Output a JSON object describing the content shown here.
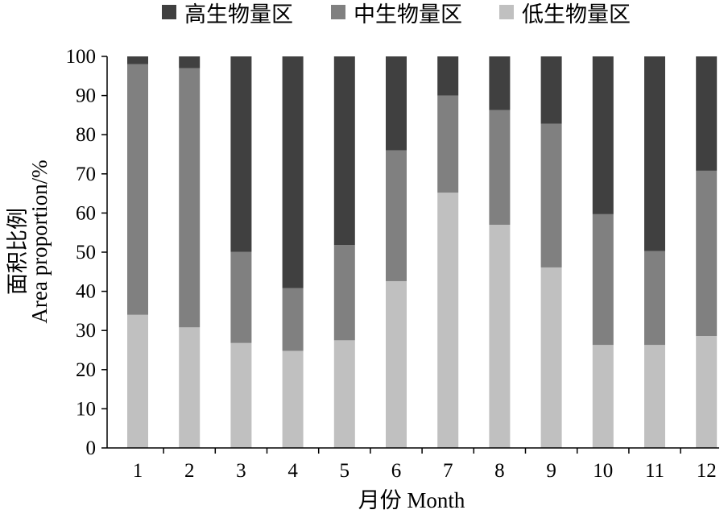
{
  "chart_data": {
    "type": "bar",
    "stacked": true,
    "categories": [
      "1",
      "2",
      "3",
      "4",
      "5",
      "6",
      "7",
      "8",
      "9",
      "10",
      "11",
      "12"
    ],
    "series": [
      {
        "name": "低生物量区",
        "color": "#c0c0c0",
        "values": [
          34,
          30.8,
          26.8,
          24.8,
          27.5,
          42.6,
          65.2,
          57,
          46.1,
          26.3,
          26.3,
          28.6
        ]
      },
      {
        "name": "中生物量区",
        "color": "#808080",
        "values": [
          64,
          66.2,
          23.3,
          16,
          24.3,
          33.4,
          24.8,
          29.3,
          36.7,
          33.4,
          24,
          42.2
        ]
      },
      {
        "name": "高生物量区",
        "color": "#404040",
        "values": [
          2,
          3,
          49.9,
          59.2,
          48.2,
          24,
          10,
          13.7,
          17.2,
          40.3,
          49.7,
          29.2
        ]
      }
    ],
    "y_ticks": [
      "0",
      "10",
      "20",
      "30",
      "40",
      "50",
      "60",
      "70",
      "80",
      "90",
      "100"
    ],
    "ylim": [
      0,
      100
    ],
    "xlabel": "月份 Month",
    "ylabel_cn": "面积比例",
    "ylabel_en": "Area proportion/%",
    "legend_position": "top",
    "grid": false
  }
}
